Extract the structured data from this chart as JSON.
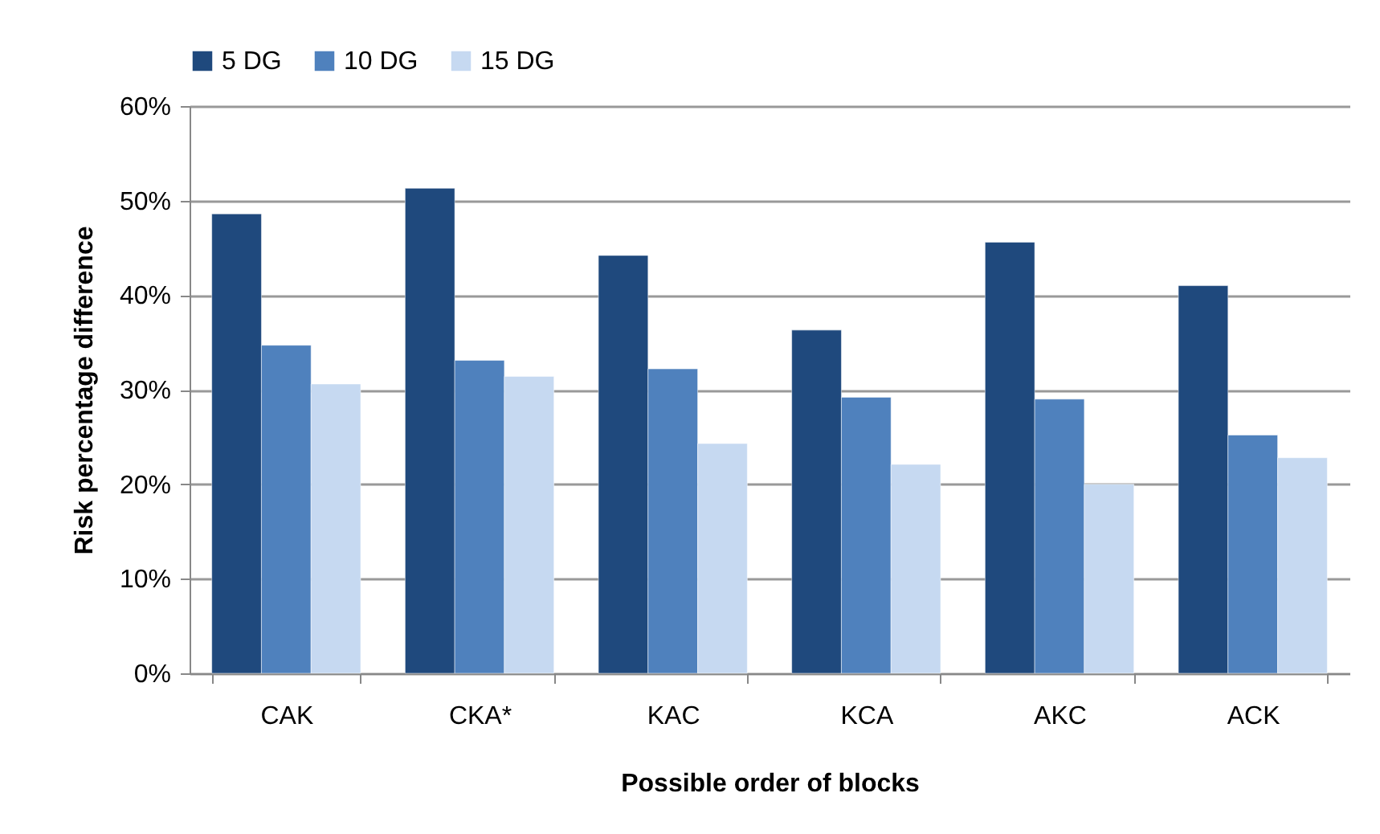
{
  "chart_data": {
    "type": "bar",
    "xlabel": "Possible order of blocks",
    "ylabel": "Risk percentage difference",
    "categories": [
      "CAK",
      "CKA*",
      "KAC",
      "KCA",
      "AKC",
      "ACK"
    ],
    "series": [
      {
        "name": "5 DG",
        "color": "#1f497d",
        "values": [
          0.486,
          0.513,
          0.442,
          0.363,
          0.456,
          0.41
        ]
      },
      {
        "name": "10 DG",
        "color": "#4f81bd",
        "values": [
          0.347,
          0.331,
          0.322,
          0.292,
          0.29,
          0.252
        ]
      },
      {
        "name": "15 DG",
        "color": "#c6d9f1",
        "values": [
          0.306,
          0.314,
          0.243,
          0.221,
          0.2,
          0.228
        ]
      }
    ],
    "ylim": [
      0,
      0.6
    ],
    "yticks": [
      {
        "value": 0,
        "label": "0%"
      },
      {
        "value": 0.1,
        "label": "10%"
      },
      {
        "value": 0.2,
        "label": "20%"
      },
      {
        "value": 0.3,
        "label": "30%"
      },
      {
        "value": 0.4,
        "label": "40%"
      },
      {
        "value": 0.5,
        "label": "50%"
      },
      {
        "value": 0.6,
        "label": "60%"
      }
    ],
    "grid": "y",
    "legend": "top"
  }
}
